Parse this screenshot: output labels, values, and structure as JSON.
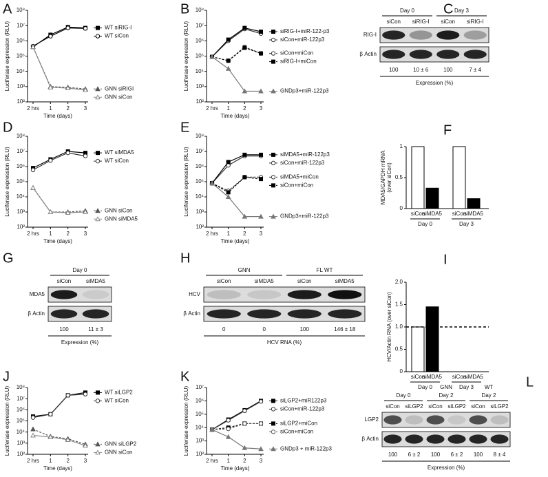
{
  "chart_data": [
    {
      "type": "line",
      "panel": "A",
      "ylabel": "Luciferase expression (RLU)",
      "xlabel": "Time (days)",
      "categories": [
        "2 hrs",
        "1",
        "2",
        "3"
      ],
      "ylog": true,
      "ylim": [
        100,
        100000000
      ],
      "yticks": [
        {
          "value": 100,
          "label": "10²"
        },
        {
          "value": 1000,
          "label": "10³"
        },
        {
          "value": 10000,
          "label": "10⁴"
        },
        {
          "value": 100000,
          "label": "10⁵"
        },
        {
          "value": 1000000,
          "label": "10⁶"
        },
        {
          "value": 10000000,
          "label": "10⁷"
        },
        {
          "value": 100000000,
          "label": "10⁸"
        }
      ],
      "series": [
        {
          "name": "WT siRIG-I",
          "color": "#000000",
          "marker": "square",
          "linestyle": "solid",
          "values": [
            400000,
            2500000,
            8000000,
            7000000
          ]
        },
        {
          "name": "WT siCon",
          "color": "#000000",
          "marker": "circle",
          "linestyle": "solid",
          "values": [
            450000,
            2000000,
            7000000,
            6500000
          ]
        },
        {
          "name": "GNN siRIGI",
          "color": "#555555",
          "marker": "triangle",
          "linestyle": "dashed",
          "values": [
            400000,
            1000,
            900,
            700
          ]
        },
        {
          "name": "GNN siCon",
          "color": "#888888",
          "marker": "triangle-open",
          "linestyle": "solid",
          "values": [
            400000,
            900,
            800,
            600
          ]
        }
      ]
    },
    {
      "type": "line",
      "panel": "B",
      "ylabel": "Luciferase expression (RLU)",
      "xlabel": "Time (days)",
      "categories": [
        "2 hrs",
        "1",
        "2",
        "3"
      ],
      "ylog": true,
      "ylim": [
        100,
        100000000
      ],
      "yticks": [
        {
          "value": 100,
          "label": "10²"
        },
        {
          "value": 1000,
          "label": "10³"
        },
        {
          "value": 10000,
          "label": "10⁴"
        },
        {
          "value": 100000,
          "label": "10⁵"
        },
        {
          "value": 1000000,
          "label": "10⁶"
        },
        {
          "value": 10000000,
          "label": "10⁷"
        },
        {
          "value": 100000000,
          "label": "10⁸"
        }
      ],
      "series": [
        {
          "name": "siCon+miR-122p3",
          "color": "#333333",
          "marker": "circle",
          "linestyle": "solid",
          "values": [
            90000,
            1000000,
            6000000,
            3000000
          ]
        },
        {
          "name": "siRIG-I+miR-122-p3",
          "color": "#000000",
          "marker": "square",
          "linestyle": "solid",
          "values": [
            90000,
            1200000,
            7000000,
            4000000
          ]
        },
        {
          "name": "siCon+miCon",
          "color": "#333333",
          "marker": "circle",
          "linestyle": "dashed",
          "values": [
            90000,
            50000,
            400000,
            150000
          ]
        },
        {
          "name": "siRIG-I+miCon",
          "color": "#000000",
          "marker": "square",
          "linestyle": "dashed",
          "values": [
            90000,
            50000,
            350000,
            150000
          ]
        },
        {
          "name": "GNDp3+miR-122p3",
          "color": "#777777",
          "marker": "triangle",
          "linestyle": "solid",
          "values": [
            90000,
            15000,
            500,
            500
          ]
        }
      ]
    },
    {
      "type": "blot",
      "panel": "C",
      "groups": [
        {
          "label": [
            "Day 0"
          ],
          "lanes": [
            "siCon",
            "siRIG-I"
          ]
        },
        {
          "label": [
            "Day 3"
          ],
          "lanes": [
            "siCon",
            "siRIG-I"
          ]
        }
      ],
      "rows": [
        "RIG-I",
        "β Actin"
      ],
      "expression": [
        "100",
        "10 ± 6",
        "100",
        "7 ± 4"
      ],
      "xlabel": "Expression (%)"
    },
    {
      "type": "line",
      "panel": "D",
      "ylabel": "Luciferase expression (RLU)",
      "xlabel": "Time (days)",
      "categories": [
        "2 hrs",
        "1",
        "2",
        "3"
      ],
      "ylog": true,
      "ylim": [
        100,
        100000000
      ],
      "yticks": [
        {
          "value": 100,
          "label": "10²"
        },
        {
          "value": 1000,
          "label": "10³"
        },
        {
          "value": 10000,
          "label": "10⁴"
        },
        {
          "value": 100000,
          "label": "10⁵"
        },
        {
          "value": 1000000,
          "label": "10⁶"
        },
        {
          "value": 10000000,
          "label": "10⁷"
        },
        {
          "value": 100000000,
          "label": "10⁸"
        }
      ],
      "series": [
        {
          "name": "WT siMDA5",
          "color": "#000000",
          "marker": "square",
          "linestyle": "solid",
          "values": [
            800000,
            3000000,
            10000000,
            8000000
          ]
        },
        {
          "name": "WT siCon",
          "color": "#333333",
          "marker": "circle",
          "linestyle": "solid",
          "values": [
            600000,
            2500000,
            8000000,
            5000000
          ]
        },
        {
          "name": "GNN siCon",
          "color": "#555555",
          "marker": "triangle",
          "linestyle": "dashed",
          "values": [
            40000,
            1000,
            1000,
            1200
          ]
        },
        {
          "name": "GNN siMDA5",
          "color": "#888888",
          "marker": "triangle-open",
          "linestyle": "solid",
          "values": [
            40000,
            1000,
            900,
            1000
          ]
        }
      ]
    },
    {
      "type": "line",
      "panel": "E",
      "ylabel": "Luciferase expression (RLU)",
      "xlabel": "Time (days)",
      "categories": [
        "2 hrs",
        "1",
        "2",
        "3"
      ],
      "ylog": true,
      "ylim": [
        100,
        100000000
      ],
      "yticks": [
        {
          "value": 100,
          "label": "10²"
        },
        {
          "value": 1000,
          "label": "10³"
        },
        {
          "value": 10000,
          "label": "10⁴"
        },
        {
          "value": 100000,
          "label": "10⁵"
        },
        {
          "value": 1000000,
          "label": "10⁶"
        },
        {
          "value": 10000000,
          "label": "10⁷"
        },
        {
          "value": 100000000,
          "label": "10⁸"
        }
      ],
      "series": [
        {
          "name": "siCon+miR-122p3",
          "color": "#333333",
          "marker": "circle",
          "linestyle": "solid",
          "values": [
            80000,
            1200000,
            5000000,
            5000000
          ]
        },
        {
          "name": "siMDA5+miR-122p3",
          "color": "#000000",
          "marker": "square",
          "linestyle": "solid",
          "values": [
            80000,
            2000000,
            6000000,
            6000000
          ]
        },
        {
          "name": "siMDA5+miCon",
          "color": "#333333",
          "marker": "circle",
          "linestyle": "dashed",
          "values": [
            80000,
            25000,
            200000,
            200000
          ]
        },
        {
          "name": "siCon+miCon",
          "color": "#000000",
          "marker": "square",
          "linestyle": "dashed",
          "values": [
            80000,
            20000,
            200000,
            150000
          ]
        },
        {
          "name": "GNDp3+miR-122p3",
          "color": "#777777",
          "marker": "triangle",
          "linestyle": "solid",
          "values": [
            80000,
            10000,
            500,
            500
          ]
        }
      ]
    },
    {
      "type": "bar",
      "panel": "F",
      "ylabel": [
        "MDA5/GAPDH mRNA",
        "(over siCon)"
      ],
      "categories": [
        "siCon",
        "siMDA5",
        "siCon",
        "siMDA5"
      ],
      "groups": [
        "Day 0",
        "Day 3"
      ],
      "values": [
        1,
        0.33,
        1,
        0.16
      ],
      "colors": [
        "#ffffff",
        "#000000",
        "#ffffff",
        "#000000"
      ],
      "ylim": [
        0,
        1
      ],
      "yticks": [
        0,
        0.5,
        1
      ]
    },
    {
      "type": "blot",
      "panel": "G",
      "groups": [
        {
          "label": [
            "Day 0"
          ],
          "lanes": [
            "siCon",
            "siMDA5"
          ]
        }
      ],
      "rows": [
        "MDA5",
        "β Actin"
      ],
      "expression": [
        "100",
        "11 ± 3"
      ],
      "xlabel": "Expression (%)"
    },
    {
      "type": "blot",
      "panel": "H",
      "groups": [
        {
          "label": [
            "GNN"
          ],
          "lanes": [
            "siCon",
            "siMDA5"
          ]
        },
        {
          "label": [
            "FL WT"
          ],
          "lanes": [
            "siCon",
            "siMDA5"
          ]
        }
      ],
      "rows": [
        "HCV",
        "β Actin"
      ],
      "expression": [
        "0",
        "0",
        "100",
        "146 ± 18"
      ],
      "xlabel": "HCV RNA (%)"
    },
    {
      "type": "bar",
      "panel": "I",
      "ylabel": [
        "HCV/Actin RNA (over siCon)"
      ],
      "categories": [
        "siCon",
        "siMDA5",
        "siCon",
        "siMDA5"
      ],
      "groups": [
        "Day 0",
        "Day 3"
      ],
      "values": [
        1,
        1.45,
        0,
        0
      ],
      "colors": [
        "#ffffff",
        "#000000",
        "#ffffff",
        "#000000"
      ],
      "hline": 1,
      "ylim": [
        0,
        2
      ],
      "yticks": [
        0,
        0.5,
        {
          "value": 1,
          "label": "1.0"
        },
        1.5,
        {
          "value": 2,
          "label": "2.0"
        }
      ]
    },
    {
      "type": "line",
      "panel": "J",
      "ylabel": "Luciferase expression (RLU)",
      "xlabel": "Time (days)",
      "categories": [
        "2 hrs",
        "1",
        "2",
        "3"
      ],
      "ylog": true,
      "ylim": [
        100,
        100000000
      ],
      "yticks": [
        {
          "value": 100,
          "label": "10²"
        },
        {
          "value": 1000,
          "label": "10³"
        },
        {
          "value": 10000,
          "label": "10⁴"
        },
        {
          "value": 100000,
          "label": "10⁵"
        },
        {
          "value": 1000000,
          "label": "10⁶"
        },
        {
          "value": 10000000,
          "label": "10⁷"
        },
        {
          "value": 100000000,
          "label": "10⁸"
        }
      ],
      "series": [
        {
          "name": "WT siLGP2",
          "color": "#000000",
          "marker": "square",
          "linestyle": "solid",
          "values": [
            250000,
            400000,
            20000000,
            35000000
          ]
        },
        {
          "name": "WT siCon",
          "color": "#333333",
          "marker": "circle",
          "linestyle": "solid",
          "values": [
            200000,
            400000,
            20000000,
            25000000
          ]
        },
        {
          "name": "GNN siLGP2",
          "color": "#555555",
          "marker": "triangle",
          "linestyle": "dashed",
          "values": [
            18000,
            4000,
            2500,
            800
          ]
        },
        {
          "name": "GNN siCon",
          "color": "#888888",
          "marker": "triangle-open",
          "linestyle": "solid",
          "values": [
            5000,
            3500,
            2000,
            600
          ]
        }
      ]
    },
    {
      "type": "line",
      "panel": "K",
      "ylabel": "Luciferase expression (RLU)",
      "xlabel": "Time (days)",
      "categories": [
        "2 hrs",
        "1",
        "2",
        "3"
      ],
      "ylog": true,
      "ylim": [
        100,
        10000000
      ],
      "yticks": [
        {
          "value": 100,
          "label": "10²"
        },
        {
          "value": 1000,
          "label": "10³"
        },
        {
          "value": 10000,
          "label": "10⁴"
        },
        {
          "value": 100000,
          "label": "10⁵"
        },
        {
          "value": 1000000,
          "label": "10⁶"
        },
        {
          "value": 10000000,
          "label": "10⁷"
        }
      ],
      "series": [
        {
          "name": "siLGP2+miR122p3",
          "color": "#000000",
          "marker": "square",
          "linestyle": "solid",
          "values": [
            7000,
            40000,
            200000,
            1000000
          ]
        },
        {
          "name": "siCon+miR-122p3",
          "color": "#333333",
          "marker": "circle",
          "linestyle": "solid",
          "values": [
            7000,
            35000,
            180000,
            900000
          ]
        },
        {
          "name": "siLGP2+miCon",
          "color": "#000000",
          "marker": "square",
          "linestyle": "dashed",
          "values": [
            7000,
            10000,
            20000,
            20000
          ]
        },
        {
          "name": "siCon+miCon",
          "color": "#555555",
          "marker": "circle",
          "linestyle": "dashed",
          "values": [
            7000,
            8000,
            20000,
            20000
          ]
        },
        {
          "name": "GNDp3 + miR-122p3",
          "color": "#777777",
          "marker": "triangle",
          "linestyle": "solid",
          "values": [
            7000,
            2000,
            300,
            250
          ]
        }
      ]
    },
    {
      "type": "blot",
      "panel": "L",
      "groups": [
        {
          "label": [
            "Day 0"
          ],
          "lanes": [
            "siCon",
            "siLGP2"
          ]
        },
        {
          "label": [
            "GNN",
            "Day 2"
          ],
          "lanes": [
            "siCon",
            "siLGP2"
          ]
        },
        {
          "label": [
            "WT",
            "Day 2"
          ],
          "lanes": [
            "siCon",
            "siLGP2"
          ]
        }
      ],
      "rows": [
        "LGP2",
        "β Actin"
      ],
      "expression": [
        "100",
        "6 ± 2",
        "100",
        "6 ± 2",
        "100",
        "8 ± 4"
      ],
      "xlabel": "Expression (%)"
    }
  ]
}
